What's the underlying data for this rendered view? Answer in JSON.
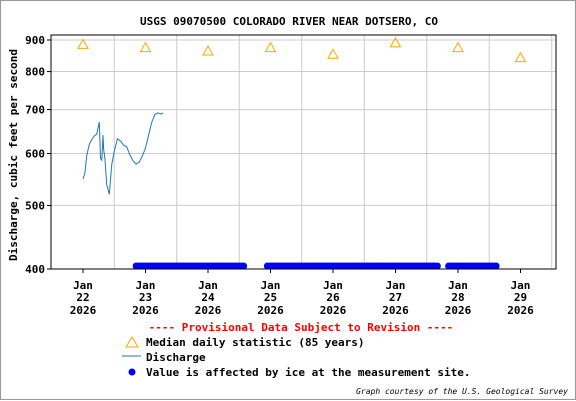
{
  "chart_data": {
    "type": "line",
    "title": "USGS 09070500 COLORADO RIVER NEAR DOTSERO, CO",
    "ylabel": "Discharge, cubic feet per second",
    "xlabel": "",
    "ylim": [
      400,
      900
    ],
    "yscale": "log",
    "yticks": [
      400,
      500,
      600,
      700,
      800,
      900
    ],
    "xlim": [
      22,
      29.5
    ],
    "xticks": [
      {
        "day": 22,
        "month": "Jan",
        "date": "22",
        "year": "2026"
      },
      {
        "day": 23,
        "month": "Jan",
        "date": "23",
        "year": "2026"
      },
      {
        "day": 24,
        "month": "Jan",
        "date": "24",
        "year": "2026"
      },
      {
        "day": 25,
        "month": "Jan",
        "date": "25",
        "year": "2026"
      },
      {
        "day": 26,
        "month": "Jan",
        "date": "26",
        "year": "2026"
      },
      {
        "day": 27,
        "month": "Jan",
        "date": "27",
        "year": "2026"
      },
      {
        "day": 28,
        "month": "Jan",
        "date": "28",
        "year": "2026"
      },
      {
        "day": 29,
        "month": "Jan",
        "date": "29",
        "year": "2026"
      }
    ],
    "grid": true,
    "series": [
      {
        "name": "Median daily statistic (85 years)",
        "kind": "marker-triangle",
        "color": "#ffa500",
        "x": [
          22,
          23,
          24,
          25,
          26,
          27,
          28,
          29
        ],
        "y": [
          880,
          870,
          860,
          870,
          850,
          885,
          870,
          840
        ]
      },
      {
        "name": "Discharge",
        "kind": "line",
        "color": "#1f77b4",
        "x": [
          22.0,
          22.03,
          22.06,
          22.1,
          22.14,
          22.18,
          22.22,
          22.26,
          22.28,
          22.3,
          22.32,
          22.33,
          22.35,
          22.38,
          22.42,
          22.46,
          22.5,
          22.55,
          22.6,
          22.65,
          22.7,
          22.75,
          22.8,
          22.85,
          22.9,
          22.95,
          23.0,
          23.05,
          23.1,
          23.15,
          23.2,
          23.25,
          23.28
        ],
        "y": [
          549,
          560,
          595,
          620,
          630,
          638,
          642,
          670,
          590,
          586,
          640,
          610,
          590,
          538,
          520,
          578,
          605,
          632,
          627,
          618,
          614,
          597,
          585,
          578,
          582,
          595,
          612,
          640,
          670,
          688,
          692,
          689,
          692
        ]
      }
    ],
    "ice_segments": [
      {
        "name": "Value is affected by ice at the measurement site.",
        "x0": 22.85,
        "x1": 24.6
      },
      {
        "x0": 24.95,
        "x1": 27.7
      },
      {
        "x0": 27.85,
        "x1": 28.65
      }
    ],
    "colors": {
      "median": "#ffa500",
      "discharge": "#1f77b4",
      "ice": "#0000ff",
      "provisional": "#ff0000",
      "grid": "#cccccc"
    }
  },
  "legend": {
    "provisional": "---- Provisional Data Subject to Revision ----",
    "median": "Median daily statistic (85 years)",
    "discharge": "Discharge",
    "ice": "Value is affected by ice at the measurement site."
  },
  "credit": "Graph courtesy of the U.S. Geological Survey"
}
